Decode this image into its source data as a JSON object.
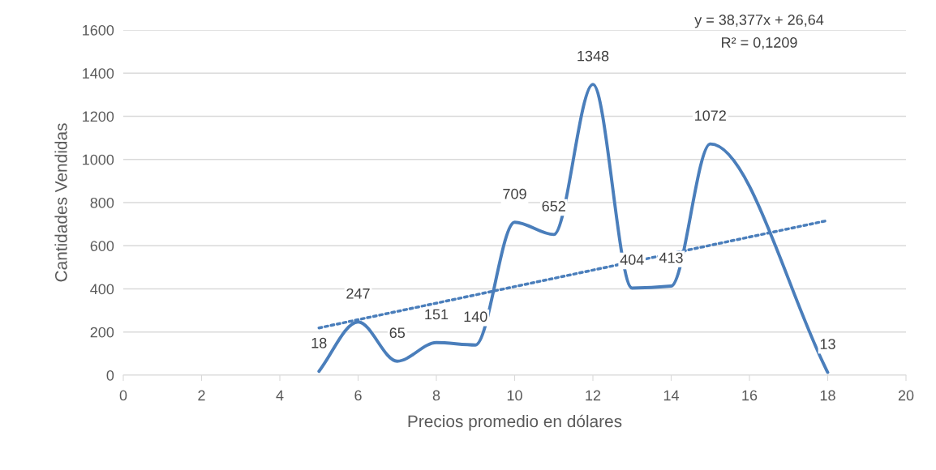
{
  "chart_data": {
    "type": "line",
    "xlabel": "Precios promedio en dólares",
    "ylabel": "Cantidades Vendidas",
    "x": [
      5,
      6,
      7,
      8,
      9,
      10,
      11,
      12,
      13,
      14,
      15,
      18
    ],
    "series": [
      {
        "color": "#4a7ebb",
        "values": [
          18,
          247,
          65,
          151,
          140,
          709,
          652,
          1348,
          404,
          413,
          1072,
          13
        ],
        "value_labels": [
          "18",
          "247",
          "65",
          "151",
          "140",
          "709",
          "652",
          "1348",
          "404",
          "413",
          "1072",
          "13"
        ]
      },
      {
        "type": "line",
        "x": [
          5,
          18
        ],
        "values": [
          219,
          717
        ],
        "color": "#4a7ebb",
        "line_style": "dotted"
      }
    ],
    "annotations": [
      "y = 38,377x + 26,64",
      "R² = 0,1209"
    ],
    "xlim": [
      0,
      20
    ],
    "xticks": [
      0,
      2,
      4,
      6,
      8,
      10,
      12,
      14,
      16,
      18,
      20
    ],
    "ylim": [
      0,
      1600
    ],
    "yticks": [
      0,
      200,
      400,
      600,
      800,
      1000,
      1200,
      1400,
      1600
    ],
    "grid": "y",
    "legend": false,
    "marker": "none"
  }
}
